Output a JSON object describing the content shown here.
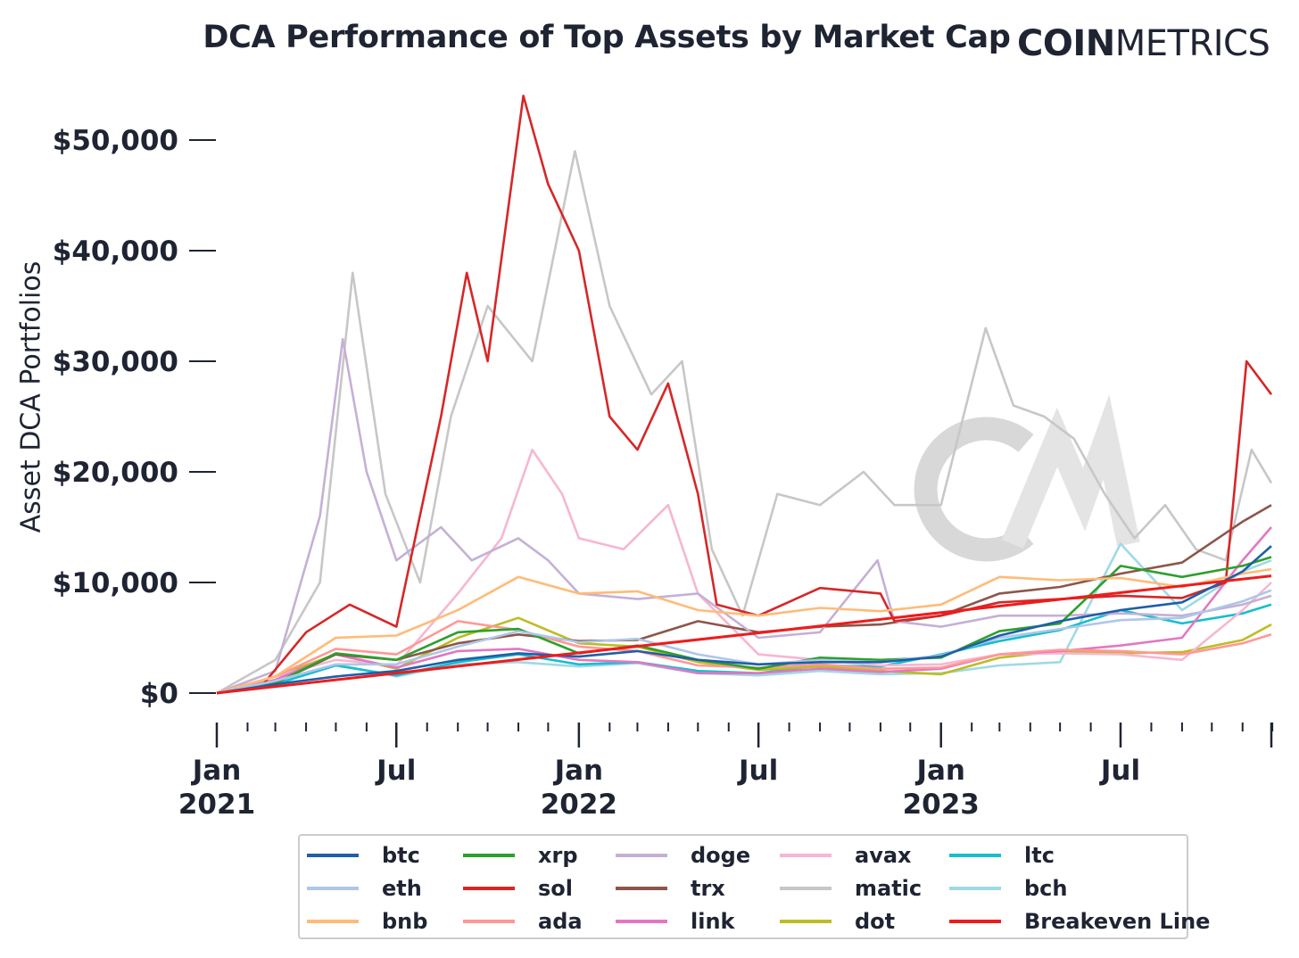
{
  "header": {
    "title": "DCA Performance of Top Assets by Market Cap",
    "brand_bold": "COIN",
    "brand_light": "METRICS"
  },
  "chart_data": {
    "type": "line",
    "title": "DCA Performance of Top Assets by Market Cap",
    "xlabel": "",
    "ylabel": "Asset DCA Portfolios",
    "ylim": [
      -1500,
      54000
    ],
    "xlim": [
      "2021-01-01",
      "2023-11-30"
    ],
    "grid": false,
    "legend_position": "bottom",
    "y_ticks": [
      {
        "value": 0,
        "label": "$0"
      },
      {
        "value": 10000,
        "label": "$10,000"
      },
      {
        "value": 20000,
        "label": "$20,000"
      },
      {
        "value": 30000,
        "label": "$30,000"
      },
      {
        "value": 40000,
        "label": "$40,000"
      },
      {
        "value": 50000,
        "label": "$50,000"
      }
    ],
    "x_major_ticks": [
      {
        "date": "2021-01-01",
        "label": [
          "Jan",
          "2021"
        ]
      },
      {
        "date": "2021-07-01",
        "label": [
          "Jul"
        ]
      },
      {
        "date": "2022-01-01",
        "label": [
          "Jan",
          "2022"
        ]
      },
      {
        "date": "2022-07-01",
        "label": [
          "Jul"
        ]
      },
      {
        "date": "2023-01-01",
        "label": [
          "Jan",
          "2023"
        ]
      },
      {
        "date": "2023-07-01",
        "label": [
          "Jul"
        ]
      }
    ],
    "x_minor_ticks": [
      "2021-02-01",
      "2021-03-01",
      "2021-04-01",
      "2021-05-01",
      "2021-06-01",
      "2021-08-01",
      "2021-09-01",
      "2021-10-01",
      "2021-11-01",
      "2021-12-01",
      "2022-02-01",
      "2022-03-01",
      "2022-04-01",
      "2022-05-01",
      "2022-06-01",
      "2022-08-01",
      "2022-09-01",
      "2022-10-01",
      "2022-11-01",
      "2022-12-01",
      "2023-02-01",
      "2023-03-01",
      "2023-04-01",
      "2023-05-01",
      "2023-06-01",
      "2023-08-01",
      "2023-09-01",
      "2023-10-01",
      "2023-11-01",
      "2023-12-01"
    ],
    "series": [
      {
        "name": "btc",
        "color": "#1f5fa8",
        "x": [
          "2021-01-01",
          "2021-03-01",
          "2021-05-01",
          "2021-07-01",
          "2021-09-01",
          "2021-11-01",
          "2022-01-01",
          "2022-03-01",
          "2022-05-01",
          "2022-07-01",
          "2022-09-01",
          "2022-11-01",
          "2023-01-01",
          "2023-03-01",
          "2023-05-01",
          "2023-07-01",
          "2023-09-01",
          "2023-11-01",
          "2023-11-30"
        ],
        "y": [
          0,
          800,
          1500,
          2000,
          3000,
          3600,
          3300,
          3800,
          3000,
          2600,
          2800,
          2800,
          3300,
          5200,
          6500,
          7500,
          8200,
          11000,
          13300
        ]
      },
      {
        "name": "eth",
        "color": "#aec7e8",
        "x": [
          "2021-01-01",
          "2021-03-01",
          "2021-05-01",
          "2021-07-01",
          "2021-09-01",
          "2021-11-01",
          "2022-01-01",
          "2022-03-01",
          "2022-05-01",
          "2022-07-01",
          "2022-09-01",
          "2022-11-01",
          "2023-01-01",
          "2023-03-01",
          "2023-05-01",
          "2023-07-01",
          "2023-09-01",
          "2023-11-01",
          "2023-11-30"
        ],
        "y": [
          0,
          1100,
          2600,
          2600,
          4200,
          5600,
          4600,
          4900,
          3500,
          2600,
          3000,
          2800,
          3400,
          5000,
          5800,
          6600,
          6800,
          8300,
          9300
        ]
      },
      {
        "name": "bnb",
        "color": "#ffbb78",
        "x": [
          "2021-01-01",
          "2021-03-01",
          "2021-05-01",
          "2021-07-01",
          "2021-09-01",
          "2021-11-01",
          "2022-01-01",
          "2022-03-01",
          "2022-05-01",
          "2022-07-01",
          "2022-09-01",
          "2022-11-01",
          "2023-01-01",
          "2023-03-01",
          "2023-05-01",
          "2023-07-01",
          "2023-09-01",
          "2023-11-01",
          "2023-11-30"
        ],
        "y": [
          0,
          1500,
          5000,
          5200,
          7500,
          10500,
          9000,
          9200,
          7500,
          7000,
          7700,
          7400,
          8000,
          10500,
          10200,
          10400,
          9600,
          10800,
          11200
        ]
      },
      {
        "name": "xrp",
        "color": "#2ca02c",
        "x": [
          "2021-01-01",
          "2021-03-01",
          "2021-05-01",
          "2021-07-01",
          "2021-09-01",
          "2021-11-01",
          "2022-01-01",
          "2022-03-01",
          "2022-05-01",
          "2022-07-01",
          "2022-09-01",
          "2022-11-01",
          "2023-01-01",
          "2023-03-01",
          "2023-05-01",
          "2023-07-01",
          "2023-09-01",
          "2023-11-01",
          "2023-11-30"
        ],
        "y": [
          0,
          900,
          3600,
          3000,
          5500,
          5800,
          3600,
          4300,
          3000,
          2200,
          3200,
          3000,
          3200,
          5600,
          6300,
          11500,
          10500,
          11500,
          12300
        ]
      },
      {
        "name": "sol",
        "color": "#d62728",
        "x": [
          "2021-01-01",
          "2021-02-15",
          "2021-04-01",
          "2021-05-15",
          "2021-07-01",
          "2021-08-15",
          "2021-09-10",
          "2021-10-01",
          "2021-11-06",
          "2021-12-01",
          "2022-01-01",
          "2022-02-01",
          "2022-03-01",
          "2022-04-01",
          "2022-05-01",
          "2022-05-20",
          "2022-07-01",
          "2022-09-01",
          "2022-11-01",
          "2022-11-15",
          "2023-01-01",
          "2023-03-01",
          "2023-05-01",
          "2023-07-01",
          "2023-09-01",
          "2023-10-15",
          "2023-11-05",
          "2023-11-30"
        ],
        "y": [
          0,
          600,
          5500,
          8000,
          6000,
          25000,
          38000,
          30000,
          54000,
          46000,
          40000,
          25000,
          22000,
          28000,
          18000,
          8000,
          7000,
          9500,
          9000,
          6500,
          7000,
          8200,
          8500,
          8800,
          8600,
          10000,
          30000,
          27000
        ]
      },
      {
        "name": "ada",
        "color": "#ff9896",
        "x": [
          "2021-01-01",
          "2021-03-01",
          "2021-05-01",
          "2021-07-01",
          "2021-09-01",
          "2021-11-01",
          "2022-01-01",
          "2022-03-01",
          "2022-05-01",
          "2022-07-01",
          "2022-09-01",
          "2022-11-01",
          "2023-01-01",
          "2023-03-01",
          "2023-05-01",
          "2023-07-01",
          "2023-09-01",
          "2023-11-01",
          "2023-11-30"
        ],
        "y": [
          0,
          1500,
          4000,
          3500,
          6500,
          5700,
          4200,
          3800,
          2500,
          2300,
          2600,
          2200,
          2300,
          3500,
          3900,
          3800,
          3500,
          4500,
          5300
        ]
      },
      {
        "name": "doge",
        "color": "#c5b0d5",
        "x": [
          "2021-01-01",
          "2021-03-01",
          "2021-04-15",
          "2021-05-08",
          "2021-06-01",
          "2021-07-01",
          "2021-08-15",
          "2021-09-15",
          "2021-11-01",
          "2021-12-01",
          "2022-01-01",
          "2022-03-01",
          "2022-05-01",
          "2022-07-01",
          "2022-09-01",
          "2022-10-29",
          "2022-11-15",
          "2023-01-01",
          "2023-03-01",
          "2023-05-01",
          "2023-07-01",
          "2023-09-01",
          "2023-11-01",
          "2023-11-30"
        ],
        "y": [
          0,
          2000,
          16000,
          32000,
          20000,
          12000,
          15000,
          12000,
          14000,
          12000,
          9000,
          8500,
          9000,
          5000,
          5500,
          12000,
          6500,
          6000,
          7000,
          7000,
          7200,
          7000,
          8000,
          8800
        ]
      },
      {
        "name": "trx",
        "color": "#8c564b",
        "x": [
          "2021-01-01",
          "2021-03-01",
          "2021-05-01",
          "2021-07-01",
          "2021-09-01",
          "2021-11-01",
          "2022-01-01",
          "2022-03-01",
          "2022-05-01",
          "2022-07-01",
          "2022-09-01",
          "2022-11-01",
          "2023-01-01",
          "2023-03-01",
          "2023-05-01",
          "2023-07-01",
          "2023-09-01",
          "2023-11-01",
          "2023-11-30"
        ],
        "y": [
          0,
          900,
          3500,
          3000,
          4500,
          5300,
          4700,
          4800,
          6500,
          5500,
          6000,
          6200,
          7000,
          9000,
          9600,
          10800,
          11800,
          15500,
          17000
        ]
      },
      {
        "name": "link",
        "color": "#e377c2",
        "x": [
          "2021-01-01",
          "2021-03-01",
          "2021-05-01",
          "2021-07-01",
          "2021-09-01",
          "2021-11-01",
          "2022-01-01",
          "2022-03-01",
          "2022-05-01",
          "2022-07-01",
          "2022-09-01",
          "2022-11-01",
          "2023-01-01",
          "2023-03-01",
          "2023-05-01",
          "2023-07-01",
          "2023-09-01",
          "2023-11-01",
          "2023-11-30"
        ],
        "y": [
          0,
          1200,
          3500,
          2300,
          3800,
          4000,
          3000,
          2800,
          1800,
          1800,
          2200,
          1900,
          2200,
          3500,
          3800,
          4300,
          5000,
          12000,
          15000
        ]
      },
      {
        "name": "avax",
        "color": "#f7b6d2",
        "x": [
          "2021-01-01",
          "2021-03-01",
          "2021-05-01",
          "2021-07-01",
          "2021-09-01",
          "2021-10-15",
          "2021-11-15",
          "2021-12-15",
          "2022-01-01",
          "2022-02-15",
          "2022-04-01",
          "2022-05-01",
          "2022-07-01",
          "2022-09-01",
          "2022-11-01",
          "2023-01-01",
          "2023-03-01",
          "2023-05-01",
          "2023-07-01",
          "2023-09-01",
          "2023-11-01",
          "2023-11-30"
        ],
        "y": [
          0,
          1500,
          3000,
          2500,
          9000,
          14000,
          22000,
          18000,
          14000,
          13000,
          17000,
          9000,
          3500,
          3000,
          2500,
          2600,
          3500,
          3600,
          3500,
          3000,
          7500,
          10000
        ]
      },
      {
        "name": "matic",
        "color": "#c7c7c7",
        "x": [
          "2021-01-01",
          "2021-03-01",
          "2021-04-15",
          "2021-05-18",
          "2021-06-20",
          "2021-07-25",
          "2021-08-25",
          "2021-10-01",
          "2021-11-15",
          "2021-12-28",
          "2022-02-01",
          "2022-03-15",
          "2022-04-15",
          "2022-05-15",
          "2022-06-15",
          "2022-07-20",
          "2022-09-01",
          "2022-10-15",
          "2022-11-15",
          "2023-01-01",
          "2023-02-15",
          "2023-03-15",
          "2023-04-15",
          "2023-05-15",
          "2023-06-15",
          "2023-07-15",
          "2023-08-15",
          "2023-09-15",
          "2023-10-15",
          "2023-11-10",
          "2023-11-30"
        ],
        "y": [
          0,
          3000,
          10000,
          38000,
          18000,
          10000,
          25000,
          35000,
          30000,
          49000,
          35000,
          27000,
          30000,
          13000,
          7000,
          18000,
          17000,
          20000,
          17000,
          17000,
          33000,
          26000,
          25000,
          23000,
          18000,
          14000,
          17000,
          13000,
          12000,
          22000,
          19000
        ]
      },
      {
        "name": "dot",
        "color": "#bcbd22",
        "x": [
          "2021-01-01",
          "2021-03-01",
          "2021-05-01",
          "2021-07-01",
          "2021-09-01",
          "2021-11-01",
          "2022-01-01",
          "2022-03-01",
          "2022-05-01",
          "2022-07-01",
          "2022-09-01",
          "2022-11-01",
          "2023-01-01",
          "2023-03-01",
          "2023-05-01",
          "2023-07-01",
          "2023-09-01",
          "2023-11-01",
          "2023-11-30"
        ],
        "y": [
          0,
          1500,
          3500,
          2200,
          5000,
          6800,
          4500,
          4200,
          2800,
          2100,
          2400,
          2000,
          1700,
          3200,
          3800,
          3600,
          3700,
          4800,
          6200
        ]
      },
      {
        "name": "ltc",
        "color": "#17becf",
        "x": [
          "2021-01-01",
          "2021-03-01",
          "2021-05-01",
          "2021-07-01",
          "2021-09-01",
          "2021-11-01",
          "2022-01-01",
          "2022-03-01",
          "2022-05-01",
          "2022-07-01",
          "2022-09-01",
          "2022-11-01",
          "2023-01-01",
          "2023-03-01",
          "2023-05-01",
          "2023-07-01",
          "2023-09-01",
          "2023-11-01",
          "2023-11-30"
        ],
        "y": [
          0,
          800,
          2500,
          1600,
          2800,
          3500,
          2600,
          2800,
          2000,
          1800,
          2500,
          2400,
          3500,
          4700,
          5700,
          7500,
          6300,
          7200,
          8000
        ]
      },
      {
        "name": "bch",
        "color": "#9edae5",
        "x": [
          "2021-01-01",
          "2021-03-01",
          "2021-05-01",
          "2021-07-01",
          "2021-09-01",
          "2021-11-01",
          "2022-01-01",
          "2022-03-01",
          "2022-05-01",
          "2022-07-01",
          "2022-09-01",
          "2022-11-01",
          "2023-01-01",
          "2023-03-01",
          "2023-05-01",
          "2023-07-01",
          "2023-09-01",
          "2023-11-01",
          "2023-11-30"
        ],
        "y": [
          0,
          900,
          2600,
          1500,
          2600,
          2800,
          2400,
          2700,
          1800,
          1600,
          2000,
          1700,
          1800,
          2500,
          2800,
          13500,
          7500,
          11000,
          12000
        ]
      },
      {
        "name": "Breakeven Line",
        "color": "#ee1c1c",
        "x": [
          "2021-01-01",
          "2023-11-30"
        ],
        "y": [
          0,
          10600
        ]
      }
    ]
  },
  "legend": {
    "items": [
      {
        "name": "btc",
        "color": "#1f5fa8"
      },
      {
        "name": "eth",
        "color": "#aec7e8"
      },
      {
        "name": "bnb",
        "color": "#ffbb78"
      },
      {
        "name": "xrp",
        "color": "#2ca02c"
      },
      {
        "name": "sol",
        "color": "#d62728"
      },
      {
        "name": "ada",
        "color": "#ff9896"
      },
      {
        "name": "doge",
        "color": "#c5b0d5"
      },
      {
        "name": "trx",
        "color": "#8c564b"
      },
      {
        "name": "link",
        "color": "#e377c2"
      },
      {
        "name": "avax",
        "color": "#f7b6d2"
      },
      {
        "name": "matic",
        "color": "#c7c7c7"
      },
      {
        "name": "dot",
        "color": "#bcbd22"
      },
      {
        "name": "ltc",
        "color": "#17becf"
      },
      {
        "name": "bch",
        "color": "#9edae5"
      },
      {
        "name": "Breakeven Line",
        "color": "#ee1c1c"
      }
    ]
  },
  "watermark": "CM"
}
